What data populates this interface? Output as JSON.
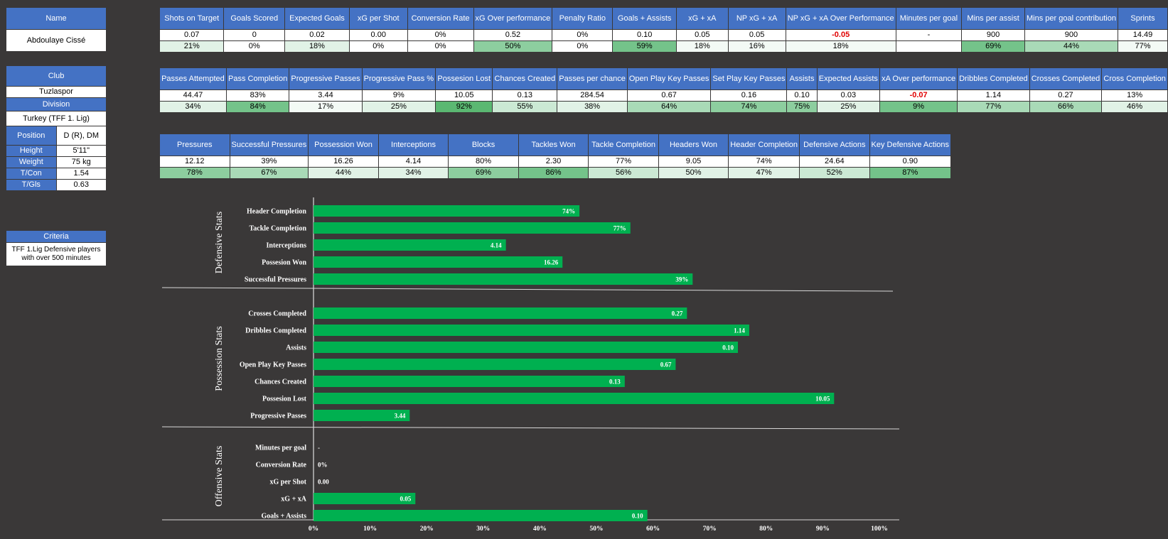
{
  "player": {
    "name_header": "Name",
    "name": "Abdoulaye Cissé",
    "club_header": "Club",
    "club": "Tuzlaspor",
    "division_header": "Division",
    "division": "Turkey (TFF 1. Lig)",
    "rows": [
      {
        "label": "Position",
        "value": "D (R), DM"
      },
      {
        "label": "Height",
        "value": "5'11\""
      },
      {
        "label": "Weight",
        "value": "75 kg"
      },
      {
        "label": "T/Con",
        "value": "1.54"
      },
      {
        "label": "T/Gls",
        "value": "0.63"
      }
    ],
    "criteria_header": "Criteria",
    "criteria_line1": "TFF 1.Lig Defensive players",
    "criteria_line2": "with over 500 minutes"
  },
  "attacking_table": {
    "headers": [
      "Shots on Target",
      "Goals Scored",
      "Expected Goals",
      "xG per Shot",
      "Conversion Rate",
      "xG Over performance",
      "Penalty Ratio",
      "Goals + Assists",
      "xG + xA",
      "NP xG + xA",
      "NP xG + xA Over Performance",
      "Minutes per goal",
      "Mins per assist",
      "Mins per goal contribution",
      "Sprints"
    ],
    "values": [
      "0.07",
      "0",
      "0.02",
      "0.00",
      "0%",
      "0.52",
      "0%",
      "0.10",
      "0.05",
      "0.05",
      "-0.05",
      "-",
      "900",
      "900",
      "14.49"
    ],
    "negative_index": [
      10
    ],
    "percentiles": [
      "21%",
      "0%",
      "18%",
      "0%",
      "0%",
      "50%",
      "0%",
      "59%",
      "18%",
      "16%",
      "18%",
      "",
      "69%",
      "44%",
      "77%"
    ],
    "shades": [
      2,
      0,
      2,
      0,
      0,
      5,
      0,
      6,
      1,
      1,
      1,
      0,
      6,
      4,
      1
    ]
  },
  "passing_table": {
    "headers": [
      "Passes Attempted",
      "Pass Completion",
      "Progressive Passes",
      "Progressive Pass %",
      "Possesion Lost",
      "Chances Created",
      "Passes per chance",
      "Open Play Key Passes",
      "Set Play Key Passes",
      "Assists",
      "Expected Assists",
      "xA Over performance",
      "Dribbles Completed",
      "Crosses Completed",
      "Cross Completion"
    ],
    "values": [
      "44.47",
      "83%",
      "3.44",
      "9%",
      "10.05",
      "0.13",
      "284.54",
      "0.67",
      "0.16",
      "0.10",
      "0.03",
      "-0.07",
      "1.14",
      "0.27",
      "13%"
    ],
    "negative_index": [
      11
    ],
    "percentiles": [
      "34%",
      "84%",
      "17%",
      "25%",
      "92%",
      "55%",
      "38%",
      "64%",
      "74%",
      "75%",
      "25%",
      "9%",
      "77%",
      "66%",
      "46%"
    ],
    "shades": [
      2,
      6,
      1,
      2,
      7,
      3,
      2,
      4,
      5,
      5,
      2,
      6,
      4,
      4,
      2
    ]
  },
  "defensive_table": {
    "headers": [
      "Pressures",
      "Successful Pressures",
      "Possession Won",
      "Interceptions",
      "Blocks",
      "Tackles Won",
      "Tackle Completion",
      "Headers Won",
      "Header Completion",
      "Defensive Actions",
      "Key Defensive Actions"
    ],
    "values": [
      "12.12",
      "39%",
      "16.26",
      "4.14",
      "80%",
      "2.30",
      "77%",
      "9.05",
      "74%",
      "24.64",
      "0.90"
    ],
    "negative_index": [],
    "percentiles": [
      "78%",
      "67%",
      "44%",
      "34%",
      "69%",
      "86%",
      "56%",
      "50%",
      "47%",
      "52%",
      "87%"
    ],
    "shades": [
      5,
      4,
      2,
      2,
      5,
      6,
      3,
      2,
      2,
      3,
      6
    ]
  },
  "colors": {
    "header_blue": "#4472c4",
    "bar_green": "#00b050",
    "background": "#3a3838"
  },
  "chart_data": {
    "type": "bar",
    "orientation": "horizontal",
    "xlim": [
      0,
      100
    ],
    "x_ticks": [
      "0%",
      "10%",
      "20%",
      "30%",
      "40%",
      "50%",
      "60%",
      "70%",
      "80%",
      "90%",
      "100%"
    ],
    "x_unit": "percentile",
    "sections": [
      {
        "name": "Defensive Stats",
        "bars": [
          {
            "label": "Header Completion",
            "percentile": 47,
            "value_label": "74%"
          },
          {
            "label": "Tackle Completion",
            "percentile": 56,
            "value_label": "77%"
          },
          {
            "label": "Interceptions",
            "percentile": 34,
            "value_label": "4.14"
          },
          {
            "label": "Possesion Won",
            "percentile": 44,
            "value_label": "16.26"
          },
          {
            "label": "Successful Pressures",
            "percentile": 67,
            "value_label": "39%"
          }
        ]
      },
      {
        "name": "Possession Stats",
        "bars": [
          {
            "label": "Crosses Completed",
            "percentile": 66,
            "value_label": "0.27"
          },
          {
            "label": "Dribbles Completed",
            "percentile": 77,
            "value_label": "1.14"
          },
          {
            "label": "Assists",
            "percentile": 75,
            "value_label": "0.10"
          },
          {
            "label": "Open Play Key Passes",
            "percentile": 64,
            "value_label": "0.67"
          },
          {
            "label": "Chances Created",
            "percentile": 55,
            "value_label": "0.13"
          },
          {
            "label": "Possesion Lost",
            "percentile": 92,
            "value_label": "10.05"
          },
          {
            "label": "Progressive Passes",
            "percentile": 17,
            "value_label": "3.44"
          }
        ]
      },
      {
        "name": "Offensive Stats",
        "bars": [
          {
            "label": "Minutes per goal",
            "percentile": 0,
            "value_label": "-"
          },
          {
            "label": "Conversion Rate",
            "percentile": 0,
            "value_label": "0%"
          },
          {
            "label": "xG per Shot",
            "percentile": 0,
            "value_label": "0.00"
          },
          {
            "label": "xG + xA",
            "percentile": 18,
            "value_label": "0.05"
          },
          {
            "label": "Goals + Assists",
            "percentile": 59,
            "value_label": "0.10"
          }
        ]
      }
    ]
  }
}
